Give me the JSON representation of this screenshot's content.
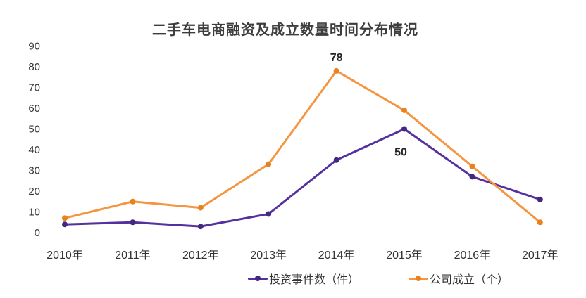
{
  "chart_data": {
    "type": "line",
    "title": "二手车电商融资及成立数量时间分布情况",
    "categories": [
      "2010年",
      "2011年",
      "2012年",
      "2013年",
      "2014年",
      "2015年",
      "2016年",
      "2017年"
    ],
    "series": [
      {
        "name": "投资事件数（件）",
        "values": [
          4,
          5,
          3,
          9,
          35,
          50,
          27,
          16
        ],
        "color": "#54319E",
        "marker_color": "#45277F"
      },
      {
        "name": "公司成立（个）",
        "values": [
          7,
          15,
          12,
          33,
          78,
          59,
          32,
          5
        ],
        "color": "#F5953F",
        "marker_color": "#E9821D"
      }
    ],
    "point_labels": [
      {
        "series": 1,
        "category": "2014年",
        "text": "78",
        "placement": "above"
      },
      {
        "series": 0,
        "category": "2015年",
        "text": "50",
        "placement": "below"
      }
    ],
    "y_axis": {
      "min": 0,
      "max": 90,
      "tick_step": 10,
      "tick_labels": [
        "0",
        "10",
        "20",
        "30",
        "40",
        "50",
        "60",
        "70",
        "80",
        "90"
      ]
    },
    "x_axis": {
      "label": ""
    },
    "grid": false,
    "axis_lines": false,
    "legend_position": "bottom",
    "colors": {
      "background": "#FFFFFF",
      "title_text": "#3D3D3D",
      "axis_text": "#333333",
      "point_label_text": "#222222"
    }
  }
}
